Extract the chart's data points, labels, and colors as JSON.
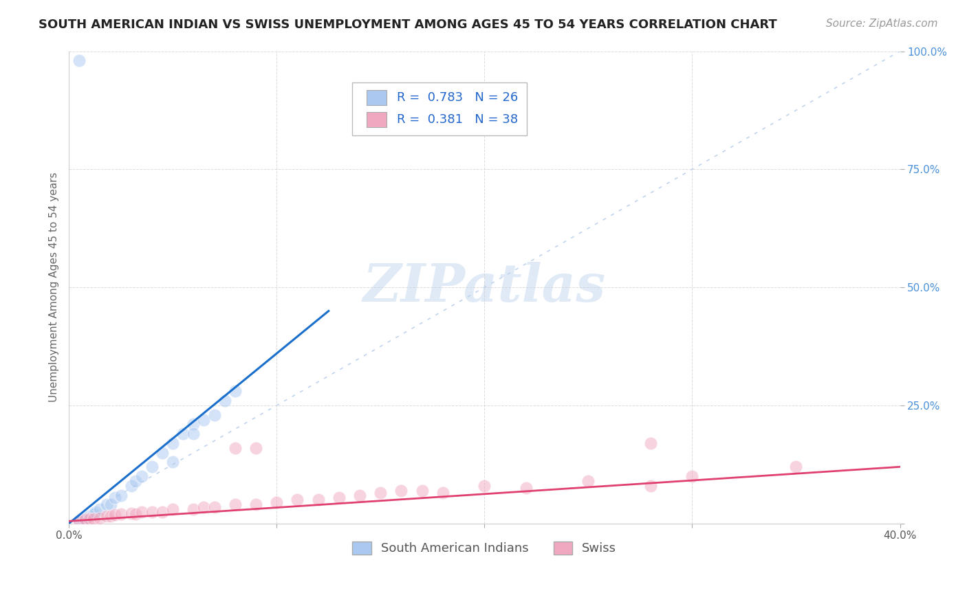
{
  "title": "SOUTH AMERICAN INDIAN VS SWISS UNEMPLOYMENT AMONG AGES 45 TO 54 YEARS CORRELATION CHART",
  "source": "Source: ZipAtlas.com",
  "ylabel": "Unemployment Among Ages 45 to 54 years",
  "xlim": [
    0.0,
    0.4
  ],
  "ylim": [
    0.0,
    1.0
  ],
  "xticks": [
    0.0,
    0.1,
    0.2,
    0.3,
    0.4
  ],
  "xticklabels": [
    "0.0%",
    "",
    "",
    "",
    "40.0%"
  ],
  "yticks": [
    0.0,
    0.25,
    0.5,
    0.75,
    1.0
  ],
  "yticklabels": [
    "",
    "25.0%",
    "50.0%",
    "75.0%",
    "100.0%"
  ],
  "blue_R": 0.783,
  "blue_N": 26,
  "pink_R": 0.381,
  "pink_N": 38,
  "blue_color": "#aac8f0",
  "pink_color": "#f0a8c0",
  "blue_line_color": "#1a6fcc",
  "pink_line_color": "#e04070",
  "ref_line_color": "#c0d4ee",
  "legend_blue_label": "South American Indians",
  "legend_pink_label": "Swiss",
  "background_color": "#ffffff",
  "grid_color": "#cccccc",
  "blue_scatter_x": [
    0.005,
    0.007,
    0.008,
    0.01,
    0.012,
    0.013,
    0.015,
    0.018,
    0.02,
    0.022,
    0.025,
    0.03,
    0.032,
    0.035,
    0.04,
    0.045,
    0.05,
    0.055,
    0.06,
    0.065,
    0.07,
    0.075,
    0.08,
    0.05,
    0.06,
    0.005
  ],
  "blue_scatter_y": [
    0.005,
    0.008,
    0.01,
    0.015,
    0.02,
    0.025,
    0.03,
    0.04,
    0.04,
    0.055,
    0.06,
    0.08,
    0.09,
    0.1,
    0.12,
    0.15,
    0.17,
    0.19,
    0.21,
    0.22,
    0.23,
    0.26,
    0.28,
    0.13,
    0.19,
    0.98
  ],
  "pink_scatter_x": [
    0.005,
    0.008,
    0.01,
    0.012,
    0.015,
    0.018,
    0.02,
    0.022,
    0.025,
    0.03,
    0.032,
    0.035,
    0.04,
    0.045,
    0.05,
    0.06,
    0.065,
    0.07,
    0.08,
    0.09,
    0.1,
    0.11,
    0.12,
    0.13,
    0.14,
    0.15,
    0.16,
    0.17,
    0.2,
    0.22,
    0.25,
    0.28,
    0.3,
    0.35,
    0.08,
    0.09,
    0.18,
    0.28
  ],
  "pink_scatter_y": [
    0.005,
    0.008,
    0.01,
    0.01,
    0.012,
    0.015,
    0.015,
    0.018,
    0.02,
    0.022,
    0.02,
    0.025,
    0.025,
    0.025,
    0.03,
    0.03,
    0.035,
    0.035,
    0.04,
    0.04,
    0.045,
    0.05,
    0.05,
    0.055,
    0.06,
    0.065,
    0.07,
    0.07,
    0.08,
    0.075,
    0.09,
    0.17,
    0.1,
    0.12,
    0.16,
    0.16,
    0.065,
    0.08
  ],
  "blue_line_x": [
    0.0,
    0.125
  ],
  "blue_line_y": [
    0.0,
    0.45
  ],
  "pink_line_x": [
    0.0,
    0.4
  ],
  "pink_line_y": [
    0.005,
    0.12
  ],
  "title_fontsize": 13,
  "source_fontsize": 11,
  "label_fontsize": 11,
  "tick_fontsize": 11,
  "legend_fontsize": 13,
  "scatter_size": 180,
  "scatter_alpha": 0.5,
  "watermark_color": "#ccddf0",
  "watermark_alpha": 0.6
}
